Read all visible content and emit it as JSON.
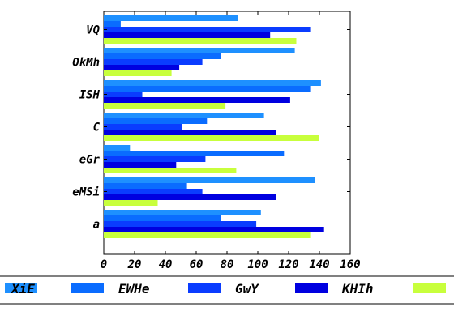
{
  "chart_data": {
    "type": "bar",
    "orientation": "horizontal",
    "categories": [
      "VQ",
      "OkMh",
      "ISH",
      "C",
      "eGr",
      "eMSi",
      "a"
    ],
    "series": [
      {
        "name": "XiE",
        "color": "#1e90ff",
        "values": [
          87,
          124,
          141,
          104,
          17,
          137,
          102
        ]
      },
      {
        "name": "EWHe",
        "color": "#0a6cff",
        "values": [
          11,
          76,
          134,
          67,
          117,
          54,
          76
        ]
      },
      {
        "name": "GwY",
        "color": "#0a3cff",
        "values": [
          134,
          64,
          25,
          51,
          66,
          64,
          99
        ]
      },
      {
        "name": "KHIh",
        "color": "#0000e0",
        "values": [
          108,
          49,
          121,
          112,
          47,
          112,
          143
        ]
      },
      {
        "name": "",
        "color": "#c8ff3c",
        "values": [
          125,
          44,
          79,
          140,
          86,
          35,
          134
        ]
      }
    ],
    "xlim": [
      0,
      160
    ],
    "xticks": [
      "0",
      "20",
      "40",
      "60",
      "80",
      "100",
      "120",
      "140",
      "160"
    ],
    "grid": false,
    "legend": {
      "placement": "bottom"
    }
  }
}
